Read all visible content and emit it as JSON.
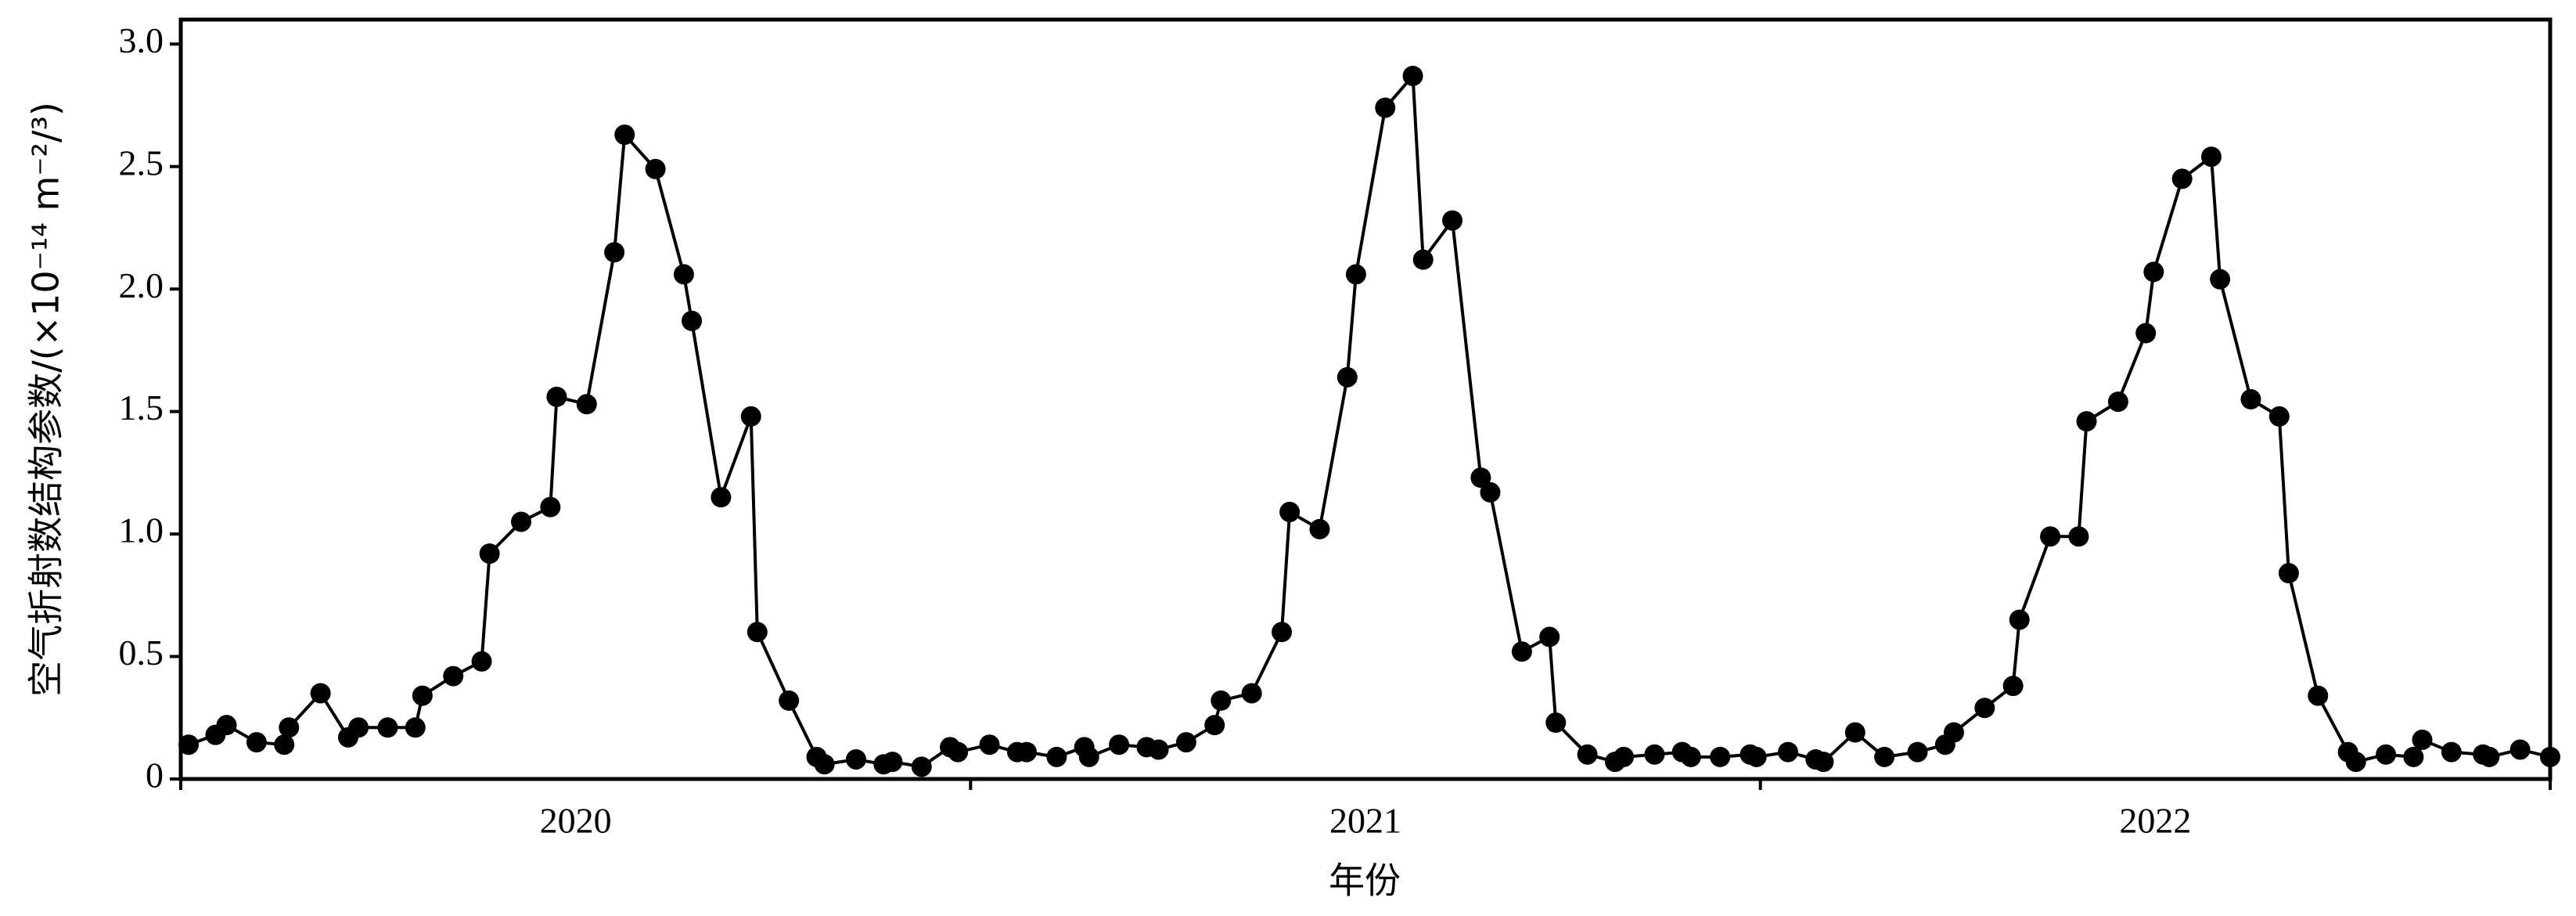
{
  "chart_data": {
    "type": "line",
    "y_label": "空气折射数结构参数/(×10⁻¹⁴ m⁻²/³)",
    "x_label": "年份",
    "xlim": [
      2019.5,
      2022.5
    ],
    "xticks": [
      2020,
      2021,
      2022
    ],
    "xtick_marks": [
      2019.5,
      2020.5,
      2021.5,
      2022.5
    ],
    "ylim": [
      0,
      3.1
    ],
    "yticks": [
      0,
      0.5,
      {
        "value": 1.0,
        "label": "1.0"
      },
      1.5,
      {
        "value": 2.0,
        "label": "2.0"
      },
      2.5,
      {
        "value": 3.0,
        "label": "3.0"
      }
    ],
    "grid": false,
    "series": [
      {
        "color": "#000000",
        "x": [
          2019.51,
          2019.544,
          2019.558,
          2019.596,
          2019.631,
          2019.637,
          2019.677,
          2019.712,
          2019.725,
          2019.762,
          2019.797,
          2019.806,
          2019.845,
          2019.881,
          2019.891,
          2019.931,
          2019.968,
          2019.976,
          2020.014,
          2020.049,
          2020.062,
          2020.101,
          2020.137,
          2020.147,
          2020.184,
          2020.222,
          2020.23,
          2020.27,
          2020.305,
          2020.315,
          2020.355,
          2020.39,
          2020.401,
          2020.438,
          2020.474,
          2020.484,
          2020.524,
          2020.559,
          2020.571,
          2020.609,
          2020.644,
          2020.65,
          2020.688,
          2020.723,
          2020.738,
          2020.773,
          2020.809,
          2020.817,
          2020.856,
          2020.894,
          2020.904,
          2020.942,
          2020.977,
          2020.988,
          2021.025,
          2021.06,
          2021.073,
          2021.11,
          2021.146,
          2021.158,
          2021.198,
          2021.233,
          2021.241,
          2021.281,
          2021.316,
          2021.327,
          2021.366,
          2021.401,
          2021.412,
          2021.449,
          2021.487,
          2021.495,
          2021.535,
          2021.57,
          2021.58,
          2021.62,
          2021.657,
          2021.699,
          2021.734,
          2021.745,
          2021.784,
          2021.82,
          2021.828,
          2021.867,
          2021.903,
          2021.913,
          2021.953,
          2021.988,
          2021.998,
          2022.034,
          2022.071,
          2022.082,
          2022.121,
          2022.157,
          2022.169,
          2022.206,
          2022.244,
          2022.254,
          2022.292,
          2022.327,
          2022.338,
          2022.375,
          2022.415,
          2022.423,
          2022.462,
          2022.5
        ],
        "values": [
          0.14,
          0.18,
          0.22,
          0.15,
          0.14,
          0.21,
          0.35,
          0.17,
          0.21,
          0.21,
          0.21,
          0.34,
          0.42,
          0.48,
          0.92,
          1.05,
          1.11,
          1.56,
          1.53,
          2.15,
          2.63,
          2.49,
          2.06,
          1.87,
          1.15,
          1.48,
          0.6,
          0.32,
          0.09,
          0.06,
          0.08,
          0.06,
          0.07,
          0.05,
          0.13,
          0.11,
          0.14,
          0.11,
          0.11,
          0.09,
          0.13,
          0.09,
          0.14,
          0.13,
          0.12,
          0.15,
          0.22,
          0.32,
          0.35,
          0.6,
          1.09,
          1.02,
          1.64,
          2.06,
          2.74,
          2.87,
          2.12,
          2.28,
          1.23,
          1.17,
          0.52,
          0.58,
          0.23,
          0.1,
          0.07,
          0.09,
          0.1,
          0.11,
          0.09,
          0.09,
          0.1,
          0.09,
          0.11,
          0.08,
          0.07,
          0.19,
          0.09,
          0.11,
          0.14,
          0.19,
          0.29,
          0.38,
          0.65,
          0.99,
          0.99,
          1.46,
          1.54,
          1.82,
          2.07,
          2.45,
          2.54,
          2.04,
          1.55,
          1.48,
          0.84,
          0.34,
          0.11,
          0.07,
          0.1,
          0.09,
          0.16,
          0.11,
          0.1,
          0.09,
          0.12,
          0.09
        ]
      }
    ]
  }
}
